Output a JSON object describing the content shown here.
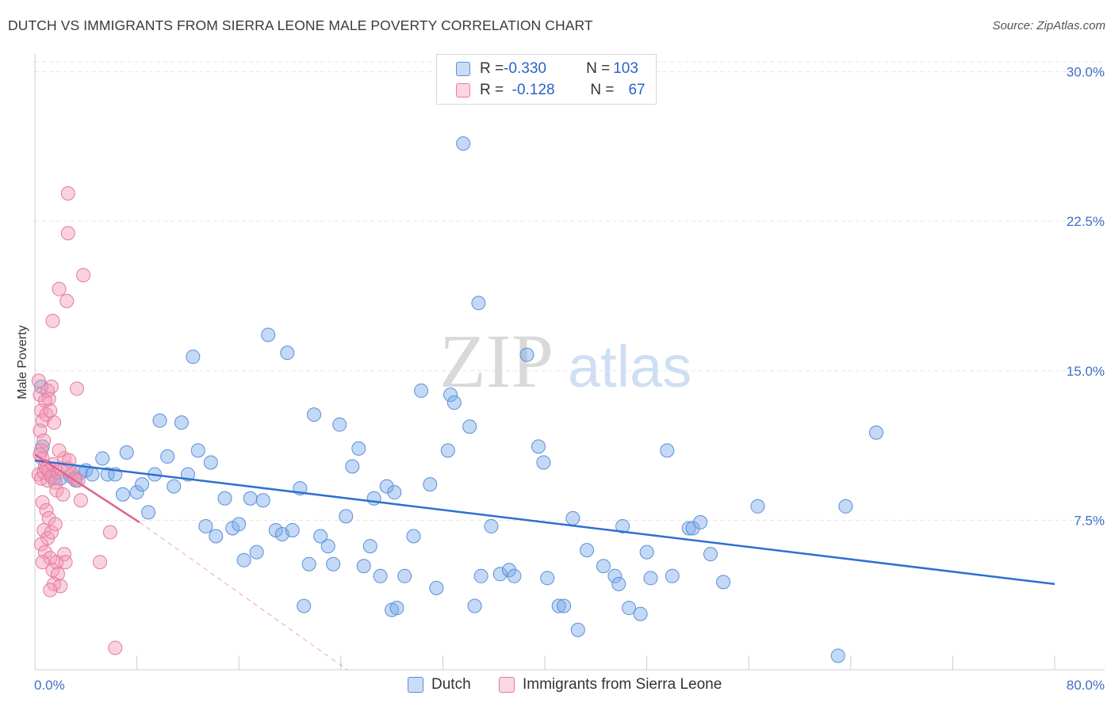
{
  "title": "DUTCH VS IMMIGRANTS FROM SIERRA LEONE MALE POVERTY CORRELATION CHART",
  "source": "Source: ZipAtlas.com",
  "watermark": {
    "zip": "ZIP",
    "atlas": "atlas"
  },
  "legend": {
    "rows": [
      {
        "r_label": "R = ",
        "r_value": "-0.330",
        "n_label": "N = ",
        "n_value": "103",
        "color": "#7aaae8"
      },
      {
        "r_label": "R = ",
        "r_value": " -0.128",
        "n_label": "N = ",
        "n_value": "67",
        "color": "#f29bb6"
      }
    ]
  },
  "bottom_legend": [
    {
      "label": "Dutch",
      "color": "#7aaae8"
    },
    {
      "label": "Immigrants from Sierra Leone",
      "color": "#f29bb6"
    }
  ],
  "chart_data": {
    "type": "scatter",
    "ylabel": "Male Poverty",
    "xlabel": "",
    "xlim": [
      0,
      80
    ],
    "ylim": [
      0,
      30.5
    ],
    "x_tick_labels": [
      "0.0%",
      "80.0%"
    ],
    "y_ticks": [
      7.5,
      15.0,
      22.5,
      30.0
    ],
    "y_tick_labels": [
      "7.5%",
      "15.0%",
      "22.5%",
      "30.0%"
    ],
    "series": [
      {
        "name": "Dutch",
        "color": "#7aaae8",
        "stroke": "#5b8fd8",
        "line_color": "#2f6fd1",
        "trend": {
          "x": [
            0,
            80
          ],
          "y": [
            10.5,
            4.3
          ]
        },
        "points": [
          [
            0.5,
            14.2
          ],
          [
            0.6,
            11.2
          ],
          [
            1.2,
            9.8
          ],
          [
            1.5,
            9.6
          ],
          [
            2.0,
            9.6
          ],
          [
            2.8,
            9.7
          ],
          [
            3.2,
            9.5
          ],
          [
            3.6,
            9.9
          ],
          [
            4.0,
            10.0
          ],
          [
            4.5,
            9.8
          ],
          [
            5.3,
            10.6
          ],
          [
            5.7,
            9.8
          ],
          [
            6.3,
            9.8
          ],
          [
            6.9,
            8.8
          ],
          [
            7.2,
            10.9
          ],
          [
            8.0,
            8.9
          ],
          [
            8.4,
            9.3
          ],
          [
            8.9,
            7.9
          ],
          [
            9.4,
            9.8
          ],
          [
            9.8,
            12.5
          ],
          [
            10.4,
            10.7
          ],
          [
            10.9,
            9.2
          ],
          [
            11.5,
            12.4
          ],
          [
            12.0,
            9.8
          ],
          [
            12.4,
            15.7
          ],
          [
            12.8,
            11.0
          ],
          [
            13.4,
            7.2
          ],
          [
            13.8,
            10.4
          ],
          [
            14.2,
            6.7
          ],
          [
            14.9,
            8.6
          ],
          [
            15.5,
            7.1
          ],
          [
            16.0,
            7.3
          ],
          [
            16.4,
            5.5
          ],
          [
            16.9,
            8.6
          ],
          [
            17.4,
            5.9
          ],
          [
            17.9,
            8.5
          ],
          [
            18.3,
            16.8
          ],
          [
            18.9,
            7.0
          ],
          [
            19.4,
            6.8
          ],
          [
            19.8,
            15.9
          ],
          [
            20.2,
            7.0
          ],
          [
            20.8,
            9.1
          ],
          [
            21.1,
            3.2
          ],
          [
            21.5,
            5.3
          ],
          [
            21.9,
            12.8
          ],
          [
            22.4,
            6.7
          ],
          [
            23.0,
            6.2
          ],
          [
            23.4,
            5.3
          ],
          [
            23.9,
            12.3
          ],
          [
            24.4,
            7.7
          ],
          [
            24.9,
            10.2
          ],
          [
            25.4,
            11.1
          ],
          [
            25.8,
            5.2
          ],
          [
            26.3,
            6.2
          ],
          [
            26.6,
            8.6
          ],
          [
            27.1,
            4.7
          ],
          [
            27.6,
            9.2
          ],
          [
            28.0,
            3.0
          ],
          [
            28.2,
            8.9
          ],
          [
            28.4,
            3.1
          ],
          [
            29.0,
            4.7
          ],
          [
            29.7,
            6.7
          ],
          [
            30.3,
            14.0
          ],
          [
            31.0,
            9.3
          ],
          [
            31.5,
            4.1
          ],
          [
            32.4,
            11.0
          ],
          [
            32.6,
            13.8
          ],
          [
            32.9,
            13.4
          ],
          [
            33.6,
            26.4
          ],
          [
            34.1,
            12.2
          ],
          [
            34.5,
            3.2
          ],
          [
            34.8,
            18.4
          ],
          [
            35.0,
            4.7
          ],
          [
            35.8,
            7.2
          ],
          [
            36.5,
            4.8
          ],
          [
            37.2,
            5.0
          ],
          [
            37.6,
            4.7
          ],
          [
            38.6,
            15.8
          ],
          [
            39.5,
            11.2
          ],
          [
            39.9,
            10.4
          ],
          [
            40.2,
            4.6
          ],
          [
            41.1,
            3.2
          ],
          [
            41.5,
            3.2
          ],
          [
            42.2,
            7.6
          ],
          [
            42.6,
            2.0
          ],
          [
            43.3,
            6.0
          ],
          [
            44.6,
            5.2
          ],
          [
            45.5,
            4.7
          ],
          [
            45.8,
            4.3
          ],
          [
            46.1,
            7.2
          ],
          [
            46.6,
            3.1
          ],
          [
            47.5,
            2.8
          ],
          [
            48.0,
            5.9
          ],
          [
            48.3,
            4.6
          ],
          [
            49.6,
            11.0
          ],
          [
            50.0,
            4.7
          ],
          [
            51.3,
            7.1
          ],
          [
            51.6,
            7.1
          ],
          [
            52.2,
            7.4
          ],
          [
            53.0,
            5.8
          ],
          [
            54.0,
            4.4
          ],
          [
            56.7,
            8.2
          ],
          [
            63.0,
            0.7
          ],
          [
            63.6,
            8.2
          ],
          [
            66.0,
            11.9
          ]
        ]
      },
      {
        "name": "Immigrants from Sierra Leone",
        "color": "#f29bb6",
        "stroke": "#e57aa0",
        "line_color": "#e0628f",
        "trend": {
          "x": [
            0,
            8.2
          ],
          "y": [
            10.8,
            7.4
          ]
        },
        "trend_dashed": {
          "x": [
            8.2,
            24.5
          ],
          "y": [
            7.4,
            0.0
          ]
        },
        "points": [
          [
            0.3,
            14.5
          ],
          [
            0.4,
            13.8
          ],
          [
            0.5,
            13.0
          ],
          [
            0.6,
            12.5
          ],
          [
            0.4,
            12.0
          ],
          [
            0.7,
            11.5
          ],
          [
            0.5,
            11.0
          ],
          [
            0.6,
            10.6
          ],
          [
            0.8,
            10.2
          ],
          [
            0.3,
            9.8
          ],
          [
            0.5,
            9.6
          ],
          [
            0.7,
            9.9
          ],
          [
            0.9,
            10.1
          ],
          [
            1.0,
            9.5
          ],
          [
            1.1,
            10.0
          ],
          [
            1.3,
            9.7
          ],
          [
            1.4,
            10.3
          ],
          [
            1.6,
            9.4
          ],
          [
            1.8,
            9.9
          ],
          [
            2.0,
            10.1
          ],
          [
            0.6,
            8.4
          ],
          [
            0.9,
            8.0
          ],
          [
            1.1,
            7.6
          ],
          [
            0.7,
            7.0
          ],
          [
            1.0,
            6.6
          ],
          [
            1.3,
            6.9
          ],
          [
            1.6,
            7.3
          ],
          [
            0.5,
            6.3
          ],
          [
            0.8,
            5.9
          ],
          [
            1.2,
            5.6
          ],
          [
            1.7,
            5.4
          ],
          [
            2.3,
            5.8
          ],
          [
            0.6,
            5.4
          ],
          [
            1.4,
            5.0
          ],
          [
            1.8,
            4.8
          ],
          [
            1.5,
            4.3
          ],
          [
            2.0,
            4.2
          ],
          [
            1.2,
            4.0
          ],
          [
            1.5,
            12.4
          ],
          [
            0.9,
            12.8
          ],
          [
            1.1,
            13.6
          ],
          [
            1.3,
            14.2
          ],
          [
            1.0,
            14.0
          ],
          [
            2.6,
            23.9
          ],
          [
            2.6,
            21.9
          ],
          [
            3.8,
            19.8
          ],
          [
            1.9,
            19.1
          ],
          [
            2.5,
            18.5
          ],
          [
            1.4,
            17.5
          ],
          [
            3.3,
            14.1
          ],
          [
            1.7,
            9.0
          ],
          [
            2.2,
            8.8
          ],
          [
            2.6,
            10.1
          ],
          [
            2.9,
            9.8
          ],
          [
            3.1,
            9.6
          ],
          [
            2.3,
            10.6
          ],
          [
            1.9,
            11.0
          ],
          [
            2.4,
            5.4
          ],
          [
            5.1,
            5.4
          ],
          [
            3.6,
            8.5
          ],
          [
            3.4,
            9.5
          ],
          [
            5.9,
            6.9
          ],
          [
            6.3,
            1.1
          ],
          [
            0.8,
            13.5
          ],
          [
            1.2,
            13.0
          ],
          [
            0.4,
            10.8
          ],
          [
            2.7,
            10.5
          ]
        ]
      }
    ]
  }
}
